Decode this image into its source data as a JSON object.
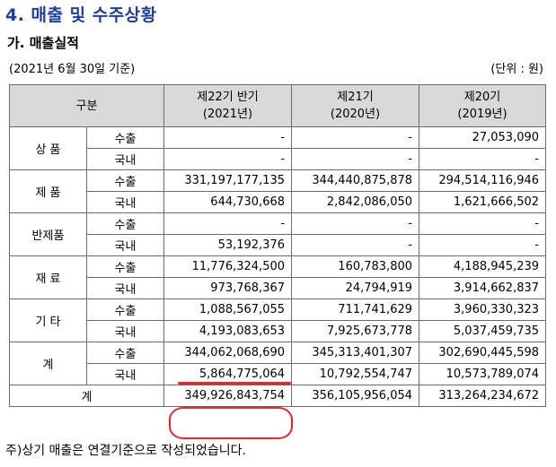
{
  "section_title": "4. 매출 및 수주상황",
  "subsection_title": "가. 매출실적",
  "basis_date": "(2021년 6월 30일 기준)",
  "unit": "(단위 : 원)",
  "headers": {
    "category": "구분",
    "col1": [
      "제22기 반기",
      "(2021년)"
    ],
    "col2": [
      "제21기",
      "(2020년)"
    ],
    "col3": [
      "제20기",
      "(2019년)"
    ]
  },
  "groups": [
    {
      "name": "상 품",
      "rows": [
        {
          "type": "수출",
          "v1": "-",
          "v2": "-",
          "v3": "27,053,090"
        },
        {
          "type": "국내",
          "v1": "-",
          "v2": "-",
          "v3": "-"
        }
      ]
    },
    {
      "name": "제 품",
      "rows": [
        {
          "type": "수출",
          "v1": "331,197,177,135",
          "v2": "344,440,875,878",
          "v3": "294,514,116,946"
        },
        {
          "type": "국내",
          "v1": "644,730,668",
          "v2": "2,842,086,050",
          "v3": "1,621,666,502"
        }
      ]
    },
    {
      "name": "반제품",
      "rows": [
        {
          "type": "수출",
          "v1": "-",
          "v2": "-",
          "v3": "-"
        },
        {
          "type": "국내",
          "v1": "53,192,376",
          "v2": "-",
          "v3": "-"
        }
      ]
    },
    {
      "name": "재 료",
      "rows": [
        {
          "type": "수출",
          "v1": "11,776,324,500",
          "v2": "160,783,800",
          "v3": "4,188,945,239"
        },
        {
          "type": "국내",
          "v1": "973,768,367",
          "v2": "24,794,919",
          "v3": "3,914,662,837"
        }
      ]
    },
    {
      "name": "기 타",
      "rows": [
        {
          "type": "수출",
          "v1": "1,088,567,055",
          "v2": "711,741,629",
          "v3": "3,960,330,323"
        },
        {
          "type": "국내",
          "v1": "4,193,083,653",
          "v2": "7,925,673,778",
          "v3": "5,037,459,735"
        }
      ]
    },
    {
      "name": "계",
      "rows": [
        {
          "type": "수출",
          "v1": "344,062,068,690",
          "v2": "345,313,401,307",
          "v3": "302,690,445,598"
        },
        {
          "type": "국내",
          "v1": "5,864,775,064",
          "v2": "10,792,554,747",
          "v3": "10,573,789,074"
        }
      ]
    }
  ],
  "total": {
    "label": "계",
    "v1": "349,926,843,754",
    "v2": "356,105,956,054",
    "v3": "313,264,234,672"
  },
  "note": "주)상기 매출은 연결기준으로 작성되었습니다.",
  "annotation_color": "#e8262b"
}
